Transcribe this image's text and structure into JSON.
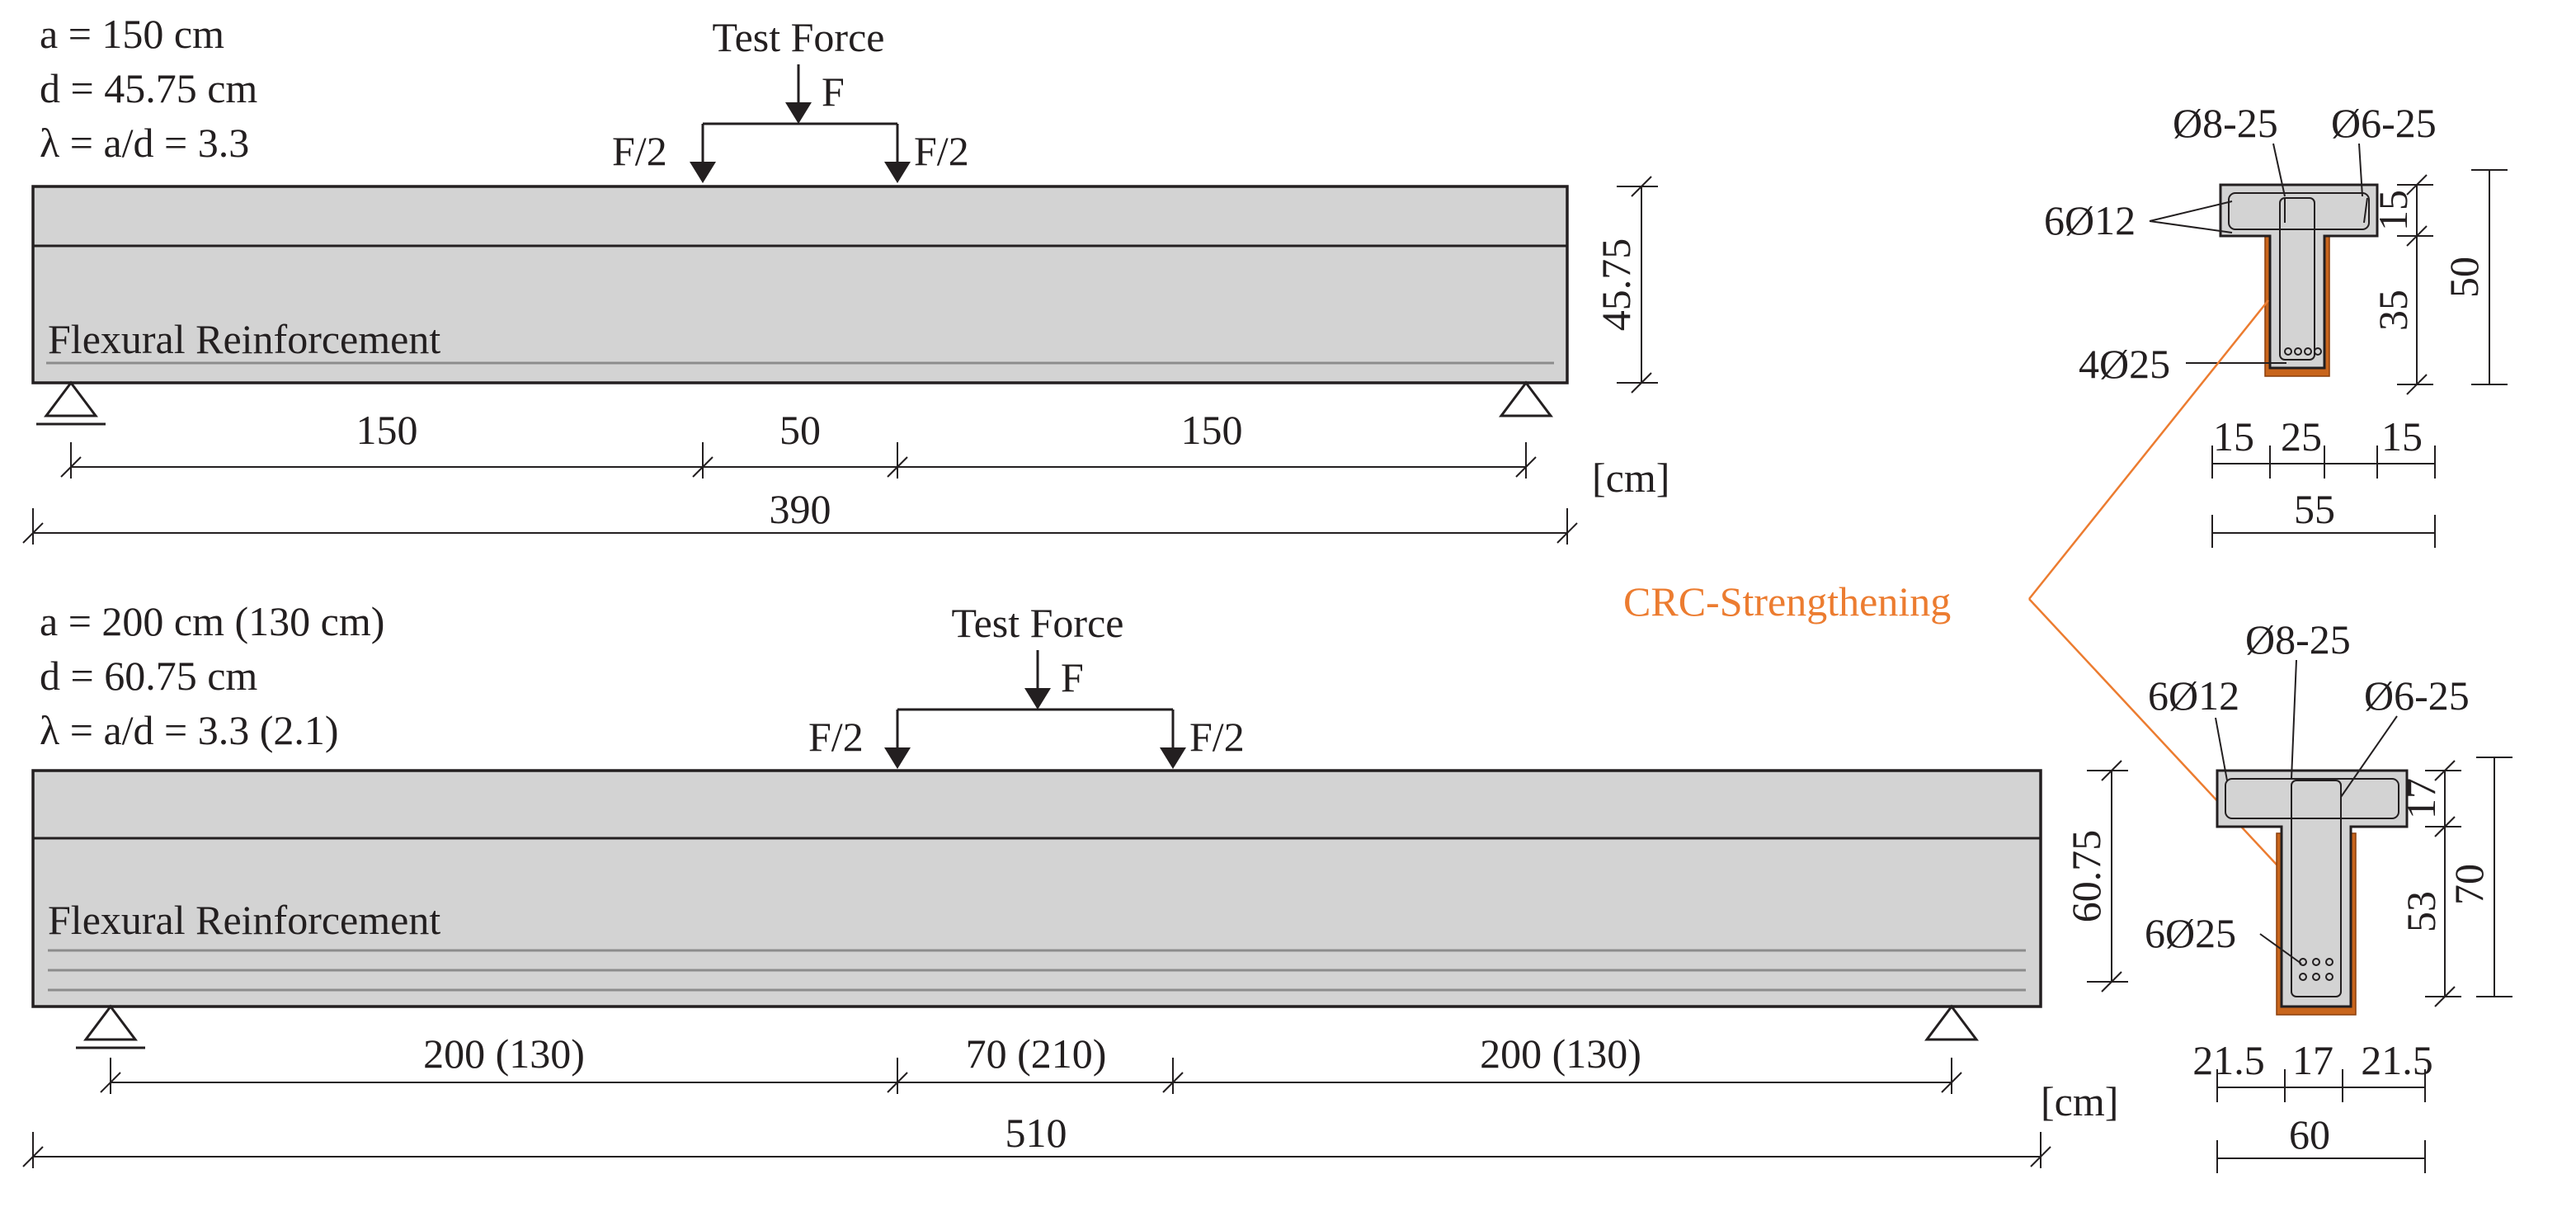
{
  "beam1": {
    "params": [
      "a = 150 cm",
      "d = 45.75 cm",
      "λ = a/d = 3.3"
    ],
    "test_force": "Test Force",
    "force": "F",
    "half_force": "F/2",
    "reinforcement_label": "Flexural Reinforcement",
    "height": "45.75",
    "spans": [
      "150",
      "50",
      "150"
    ],
    "total": "390",
    "unit": "[cm]"
  },
  "beam2": {
    "params": [
      "a = 200 cm (130 cm)",
      "d = 60.75 cm",
      "λ = a/d = 3.3 (2.1)"
    ],
    "test_force": "Test Force",
    "force": "F",
    "half_force": "F/2",
    "reinforcement_label": "Flexural Reinforcement",
    "height": "60.75",
    "spans": [
      "200 (130)",
      "70 (210)",
      "200 (130)"
    ],
    "total": "510",
    "unit": "[cm]"
  },
  "section1": {
    "stirrup": "Ø8-25",
    "link": "Ø6-25",
    "top_bars": "6Ø12",
    "bottom_bars": "4Ø25",
    "flange": "15",
    "web": "35",
    "height": "50",
    "widths": [
      "15",
      "25",
      "15"
    ],
    "total_width": "55"
  },
  "section2": {
    "stirrup": "Ø8-25",
    "link": "Ø6-25",
    "top_bars": "6Ø12",
    "bottom_bars": "6Ø25",
    "flange": "17",
    "web": "53",
    "height": "70",
    "widths": [
      "21.5",
      "17",
      "21.5"
    ],
    "total_width": "60"
  },
  "strengthening_label": "CRC-Strengthening",
  "colors": {
    "concrete": "#d3d3d3",
    "crc": "#c8651c",
    "label": "#ec7c30",
    "line": "#231f20"
  }
}
